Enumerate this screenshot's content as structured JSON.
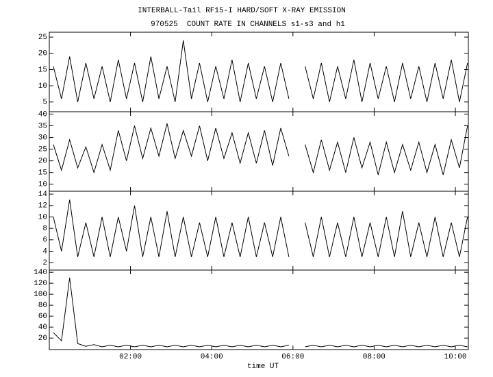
{
  "title": "INTERBALL-Tail RF15-I HARD/SOFT X-RAY EMISSION",
  "subtitle": "970525  COUNT RATE IN CHANNELS s1-s3 and h1",
  "chart_data": [
    {
      "type": "line",
      "color": "#000000",
      "xlim": [
        0,
        10.32
      ],
      "ylim": [
        2,
        26.5
      ],
      "yticks": [
        5,
        10,
        15,
        20,
        25
      ],
      "x": [
        0.1,
        0.3,
        0.5,
        0.7,
        0.9,
        1.1,
        1.3,
        1.5,
        1.7,
        1.9,
        2.1,
        2.3,
        2.5,
        2.7,
        2.9,
        3.1,
        3.3,
        3.5,
        3.7,
        3.9,
        4.1,
        4.3,
        4.5,
        4.7,
        4.9,
        5.1,
        5.3,
        5.5,
        5.7,
        5.9,
        6.1,
        6.3,
        6.5,
        6.7,
        6.9,
        7.1,
        7.3,
        7.5,
        7.7,
        7.9,
        8.1,
        8.3,
        8.5,
        8.7,
        8.9,
        9.1,
        9.3,
        9.5,
        9.7,
        9.9,
        10.1,
        10.3
      ],
      "values": [
        16,
        6,
        19,
        5,
        17,
        6,
        16,
        5,
        18,
        6,
        17,
        5,
        19,
        6,
        16,
        5,
        24,
        6,
        17,
        5,
        16,
        6,
        18,
        5,
        17,
        6,
        16,
        5,
        17,
        6,
        null,
        16,
        6,
        17,
        5,
        16,
        6,
        18,
        5,
        17,
        6,
        16,
        5,
        17,
        6,
        16,
        5,
        17,
        6,
        18,
        5,
        17
      ]
    },
    {
      "type": "line",
      "color": "#000000",
      "xlim": [
        0,
        10.32
      ],
      "ylim": [
        7,
        41
      ],
      "yticks": [
        10,
        15,
        20,
        25,
        30,
        35,
        40
      ],
      "x": [
        0.1,
        0.3,
        0.5,
        0.7,
        0.9,
        1.1,
        1.3,
        1.5,
        1.7,
        1.9,
        2.1,
        2.3,
        2.5,
        2.7,
        2.9,
        3.1,
        3.3,
        3.5,
        3.7,
        3.9,
        4.1,
        4.3,
        4.5,
        4.7,
        4.9,
        5.1,
        5.3,
        5.5,
        5.7,
        5.9,
        6.1,
        6.3,
        6.5,
        6.7,
        6.9,
        7.1,
        7.3,
        7.5,
        7.7,
        7.9,
        8.1,
        8.3,
        8.5,
        8.7,
        8.9,
        9.1,
        9.3,
        9.5,
        9.7,
        9.9,
        10.1,
        10.3
      ],
      "values": [
        27,
        16,
        29,
        17,
        26,
        15,
        27,
        16,
        33,
        20,
        35,
        21,
        34,
        22,
        36,
        21,
        33,
        22,
        35,
        20,
        34,
        21,
        32,
        19,
        32,
        19,
        33,
        18,
        34,
        22,
        null,
        27,
        15,
        29,
        16,
        28,
        15,
        30,
        17,
        28,
        14,
        28,
        15,
        27,
        16,
        28,
        15,
        27,
        14,
        29,
        17,
        35
      ]
    },
    {
      "type": "line",
      "color": "#000000",
      "xlim": [
        0,
        10.32
      ],
      "ylim": [
        0.7,
        14.5
      ],
      "yticks": [
        2,
        4,
        6,
        8,
        10,
        12,
        14
      ],
      "x": [
        0.1,
        0.3,
        0.5,
        0.7,
        0.9,
        1.1,
        1.3,
        1.5,
        1.7,
        1.9,
        2.1,
        2.3,
        2.5,
        2.7,
        2.9,
        3.1,
        3.3,
        3.5,
        3.7,
        3.9,
        4.1,
        4.3,
        4.5,
        4.7,
        4.9,
        5.1,
        5.3,
        5.5,
        5.7,
        5.9,
        6.1,
        6.3,
        6.5,
        6.7,
        6.9,
        7.1,
        7.3,
        7.5,
        7.7,
        7.9,
        8.1,
        8.3,
        8.5,
        8.7,
        8.9,
        9.1,
        9.3,
        9.5,
        9.7,
        9.9,
        10.1,
        10.3
      ],
      "values": [
        10,
        4,
        13,
        3,
        9,
        3,
        10,
        3,
        10,
        4,
        12,
        3,
        10,
        3,
        11,
        3,
        10,
        3,
        9,
        3,
        10,
        3,
        9,
        3,
        10,
        3,
        9,
        3,
        10,
        3,
        null,
        9,
        3,
        10,
        3,
        9,
        3,
        10,
        3,
        9,
        3,
        10,
        3,
        11,
        3,
        9,
        3,
        10,
        3,
        9,
        3,
        10
      ]
    },
    {
      "type": "line",
      "color": "#000000",
      "xlim": [
        0,
        10.32
      ],
      "ylim": [
        -1,
        144
      ],
      "yticks": [
        20,
        40,
        60,
        80,
        100,
        120,
        140
      ],
      "x": [
        0.1,
        0.3,
        0.5,
        0.7,
        0.9,
        1.1,
        1.3,
        1.5,
        1.7,
        1.9,
        2.1,
        2.3,
        2.5,
        2.7,
        2.9,
        3.1,
        3.3,
        3.5,
        3.7,
        3.9,
        4.1,
        4.3,
        4.5,
        4.7,
        4.9,
        5.1,
        5.3,
        5.5,
        5.7,
        5.9,
        6.1,
        6.3,
        6.5,
        6.7,
        6.9,
        7.1,
        7.3,
        7.5,
        7.7,
        7.9,
        8.1,
        8.3,
        8.5,
        8.7,
        8.9,
        9.1,
        9.3,
        9.5,
        9.7,
        9.9,
        10.1,
        10.3
      ],
      "values": [
        30,
        15,
        130,
        10,
        5,
        8,
        4,
        7,
        4,
        7,
        4,
        7,
        4,
        7,
        4,
        7,
        4,
        7,
        4,
        7,
        4,
        7,
        4,
        7,
        4,
        7,
        4,
        7,
        4,
        7,
        null,
        4,
        7,
        4,
        7,
        4,
        7,
        4,
        7,
        4,
        7,
        4,
        7,
        4,
        7,
        4,
        7,
        4,
        7,
        4,
        7,
        4
      ],
      "xlabel": "time UT",
      "xticks": [
        {
          "value": 2,
          "label": "02:00"
        },
        {
          "value": 4,
          "label": "04:00"
        },
        {
          "value": 6,
          "label": "06:00"
        },
        {
          "value": 8,
          "label": "08:00"
        },
        {
          "value": 10,
          "label": "10:00"
        }
      ]
    }
  ]
}
